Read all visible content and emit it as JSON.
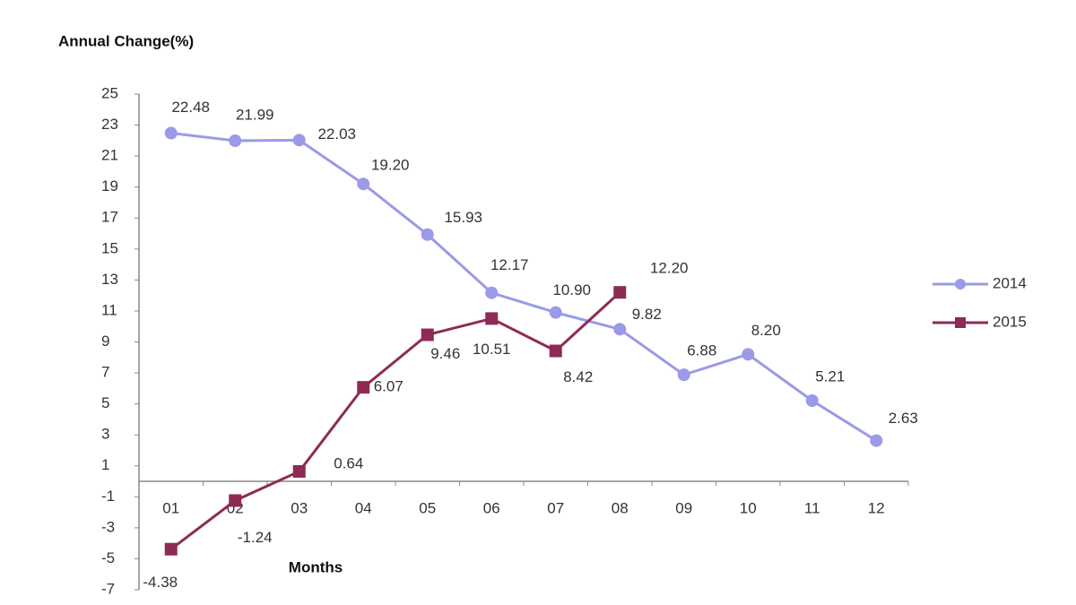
{
  "chart_data": {
    "type": "line",
    "y_axis_label": "Annual Change(%)",
    "x_axis_label": "Months",
    "categories": [
      "01",
      "02",
      "03",
      "04",
      "05",
      "06",
      "07",
      "08",
      "09",
      "10",
      "11",
      "12"
    ],
    "series": [
      {
        "name": "2014",
        "color": "#9a9ae8",
        "marker": "circle",
        "values": [
          22.48,
          21.99,
          22.03,
          19.2,
          15.93,
          12.17,
          10.9,
          9.82,
          6.88,
          8.2,
          5.21,
          2.63
        ],
        "value_labels": [
          "22.48",
          "21.99",
          "22.03",
          "19.20",
          "15.93",
          "12.17",
          "10.90",
          "9.82",
          "6.88",
          "8.20",
          "5.21",
          "2.63"
        ]
      },
      {
        "name": "2015",
        "color": "#8e2a55",
        "marker": "square",
        "values": [
          -4.38,
          -1.24,
          0.64,
          6.07,
          9.46,
          10.51,
          8.42,
          12.2,
          null,
          null,
          null,
          null
        ],
        "value_labels": [
          "-4.38",
          "-1.24",
          "0.64",
          "6.07",
          "9.46",
          "10.51",
          "8.42",
          "12.20",
          null,
          null,
          null,
          null
        ]
      }
    ],
    "ylim": [
      -7,
      25
    ],
    "yticks": [
      -7,
      -5,
      -3,
      -1,
      1,
      3,
      5,
      7,
      9,
      11,
      13,
      15,
      17,
      19,
      21,
      23,
      25
    ],
    "grid": false,
    "legend": "right"
  }
}
